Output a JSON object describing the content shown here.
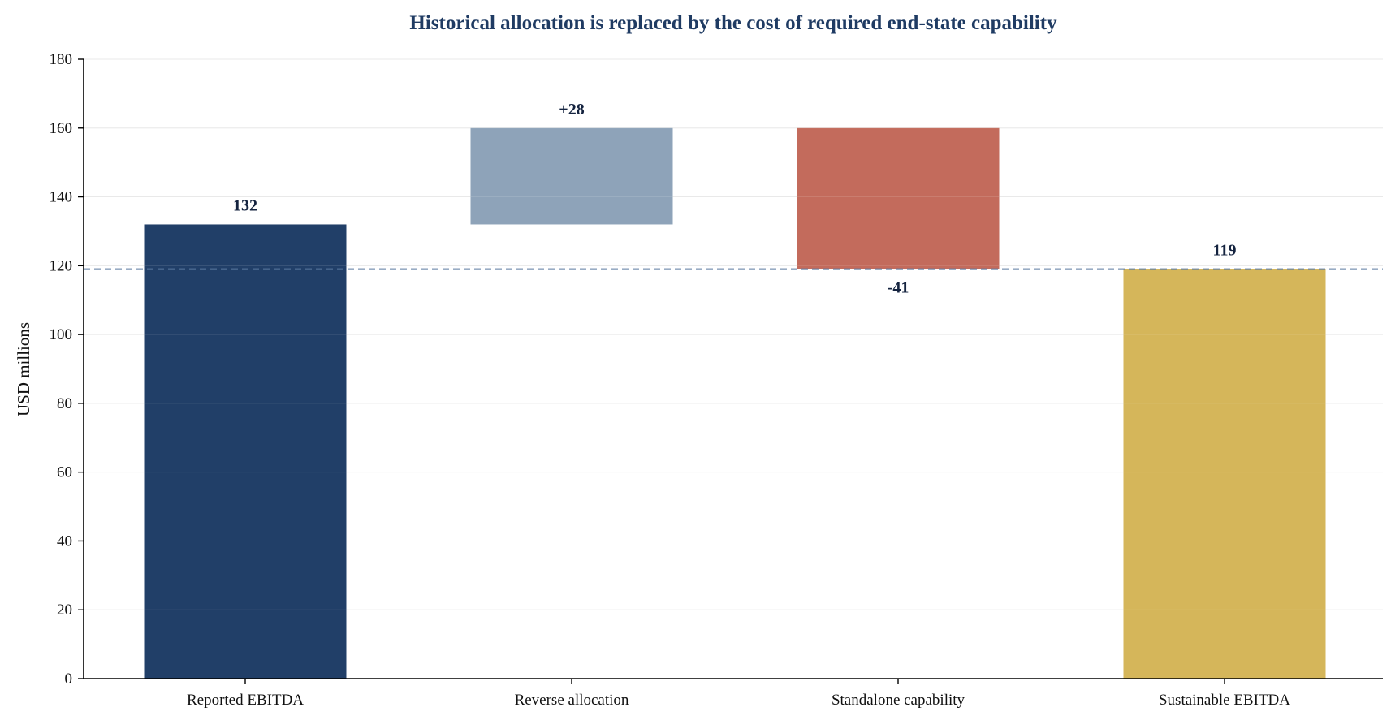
{
  "chart_data": {
    "type": "bar",
    "subtype": "waterfall",
    "title": "Historical allocation is replaced by the cost of required end-state capability",
    "xlabel": "",
    "ylabel": "USD millions",
    "ylim": [
      0,
      180
    ],
    "yticks": [
      0,
      20,
      40,
      60,
      80,
      100,
      120,
      140,
      160,
      180
    ],
    "grid": true,
    "reference_line": {
      "value": 119,
      "style": "dashed",
      "color": "#5b7aa0"
    },
    "categories": [
      "Reported EBITDA",
      "Reverse allocation",
      "Standalone capability",
      "Sustainable EBITDA"
    ],
    "bars": [
      {
        "category": "Reported EBITDA",
        "kind": "total",
        "start": 0,
        "end": 132,
        "label": "132",
        "color": "#213f68"
      },
      {
        "category": "Reverse allocation",
        "kind": "increase",
        "start": 132,
        "end": 160,
        "label": "+28",
        "color": "#8ea3b9"
      },
      {
        "category": "Standalone capability",
        "kind": "decrease",
        "start": 160,
        "end": 119,
        "label": "-41",
        "color": "#c36b5c"
      },
      {
        "category": "Sustainable EBITDA",
        "kind": "total",
        "start": 0,
        "end": 119,
        "label": "119",
        "color": "#d5b65a"
      }
    ]
  }
}
